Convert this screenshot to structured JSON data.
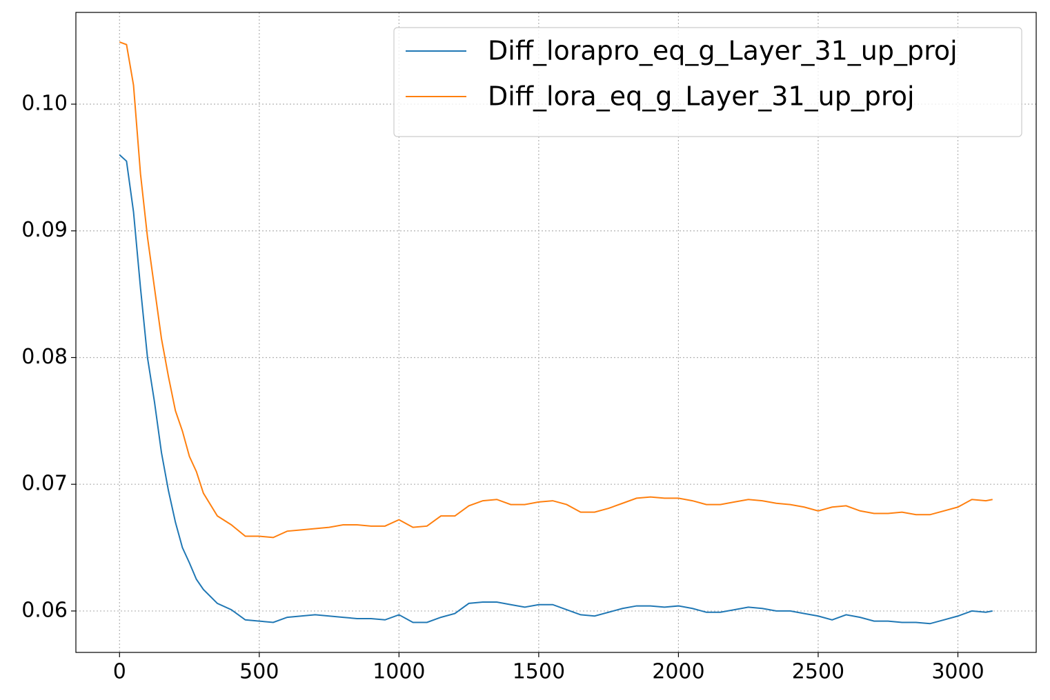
{
  "chart_data": {
    "type": "line",
    "x": [
      0,
      25,
      50,
      75,
      100,
      125,
      150,
      175,
      200,
      225,
      250,
      275,
      300,
      350,
      400,
      450,
      500,
      550,
      600,
      650,
      700,
      750,
      800,
      850,
      900,
      950,
      1000,
      1050,
      1100,
      1150,
      1200,
      1250,
      1300,
      1350,
      1400,
      1450,
      1500,
      1550,
      1600,
      1650,
      1700,
      1750,
      1800,
      1850,
      1900,
      1950,
      2000,
      2050,
      2100,
      2150,
      2200,
      2250,
      2300,
      2350,
      2400,
      2450,
      2500,
      2550,
      2600,
      2650,
      2700,
      2750,
      2800,
      2850,
      2900,
      2950,
      3000,
      3050,
      3100,
      3124
    ],
    "series": [
      {
        "name": "Diff_lorapro_eq_g_Layer_31_up_proj",
        "color": "#1f77b4",
        "values": [
          0.096,
          0.0955,
          0.0915,
          0.0855,
          0.08,
          0.0765,
          0.0725,
          0.0695,
          0.067,
          0.065,
          0.0638,
          0.0625,
          0.0617,
          0.0606,
          0.0601,
          0.0593,
          0.0592,
          0.0591,
          0.0595,
          0.0596,
          0.0597,
          0.0596,
          0.0595,
          0.0594,
          0.0594,
          0.0593,
          0.0597,
          0.0591,
          0.0591,
          0.0595,
          0.0598,
          0.0606,
          0.0607,
          0.0607,
          0.0605,
          0.0603,
          0.0605,
          0.0605,
          0.0601,
          0.0597,
          0.0596,
          0.0599,
          0.0602,
          0.0604,
          0.0604,
          0.0603,
          0.0604,
          0.0602,
          0.0599,
          0.0599,
          0.0601,
          0.0603,
          0.0602,
          0.06,
          0.06,
          0.0598,
          0.0596,
          0.0593,
          0.0597,
          0.0595,
          0.0592,
          0.0592,
          0.0591,
          0.0591,
          0.059,
          0.0593,
          0.0596,
          0.06,
          0.0599,
          0.06
        ]
      },
      {
        "name": "Diff_lora_eq_g_Layer_31_up_proj",
        "color": "#ff7f0e",
        "values": [
          0.1049,
          0.1047,
          0.1015,
          0.0945,
          0.0895,
          0.0855,
          0.0815,
          0.0785,
          0.0758,
          0.0742,
          0.0722,
          0.071,
          0.0693,
          0.0675,
          0.0668,
          0.0659,
          0.0659,
          0.0658,
          0.0663,
          0.0664,
          0.0665,
          0.0666,
          0.0668,
          0.0668,
          0.0667,
          0.0667,
          0.0672,
          0.0666,
          0.0667,
          0.0675,
          0.0675,
          0.0683,
          0.0687,
          0.0688,
          0.0684,
          0.0684,
          0.0686,
          0.0687,
          0.0684,
          0.0678,
          0.0678,
          0.0681,
          0.0685,
          0.0689,
          0.069,
          0.0689,
          0.0689,
          0.0687,
          0.0684,
          0.0684,
          0.0686,
          0.0688,
          0.0687,
          0.0685,
          0.0684,
          0.0682,
          0.0679,
          0.0682,
          0.0683,
          0.0679,
          0.0677,
          0.0677,
          0.0678,
          0.0676,
          0.0676,
          0.0679,
          0.0682,
          0.0688,
          0.0687,
          0.0688
        ]
      }
    ],
    "xlim": [
      -156.2,
      3280.2
    ],
    "xticks": [
      0,
      500,
      1000,
      1500,
      2000,
      2500,
      3000
    ],
    "ylim": [
      0.05673,
      0.10724
    ],
    "yticks": [
      0.06,
      0.07,
      0.08,
      0.09,
      {
        "value": 0.1,
        "label": "0.10"
      }
    ],
    "grid": true,
    "legend": "upper right"
  }
}
